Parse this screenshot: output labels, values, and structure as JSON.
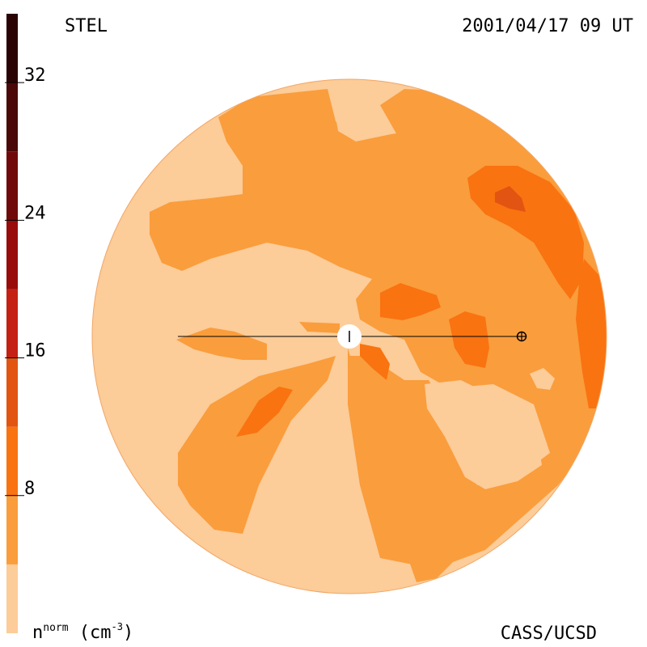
{
  "header": {
    "source": "STEL",
    "timestamp": "2001/04/17 09 UT"
  },
  "footer": {
    "credit": "CASS/UCSD",
    "quantity": "n",
    "quantity_sup": "norm",
    "unit_open": " (cm",
    "unit_exp": "-3",
    "unit_close": ")"
  },
  "chart_data": {
    "type": "heatmap",
    "title": "",
    "colorbar": {
      "min": 0,
      "max": 36,
      "ticks": [
        8,
        16,
        24,
        32
      ],
      "tick_labels": [
        "8",
        "16",
        "24",
        "32"
      ],
      "levels": [
        {
          "from": 0,
          "to": 4,
          "color": "#fccc99"
        },
        {
          "from": 4,
          "to": 8,
          "color": "#fa9d3c"
        },
        {
          "from": 8,
          "to": 12,
          "color": "#f97310"
        },
        {
          "from": 12,
          "to": 16,
          "color": "#e25412"
        },
        {
          "from": 16,
          "to": 20,
          "color": "#c42114"
        },
        {
          "from": 20,
          "to": 24,
          "color": "#990c0c"
        },
        {
          "from": 24,
          "to": 28,
          "color": "#700a0a"
        },
        {
          "from": 28,
          "to": 32,
          "color": "#4a0808"
        },
        {
          "from": 32,
          "to": 36,
          "color": "#2a0404"
        }
      ]
    },
    "markers": [
      {
        "name": "sun",
        "symbol": "filled circle"
      },
      {
        "name": "earth",
        "symbol": "circled plus"
      }
    ]
  },
  "colors": {
    "level_1": "#fccc99",
    "level_2": "#fa9d3c",
    "level_3": "#f97310",
    "level_4": "#e25412",
    "sun": "#ffffff",
    "line": "#000000"
  }
}
